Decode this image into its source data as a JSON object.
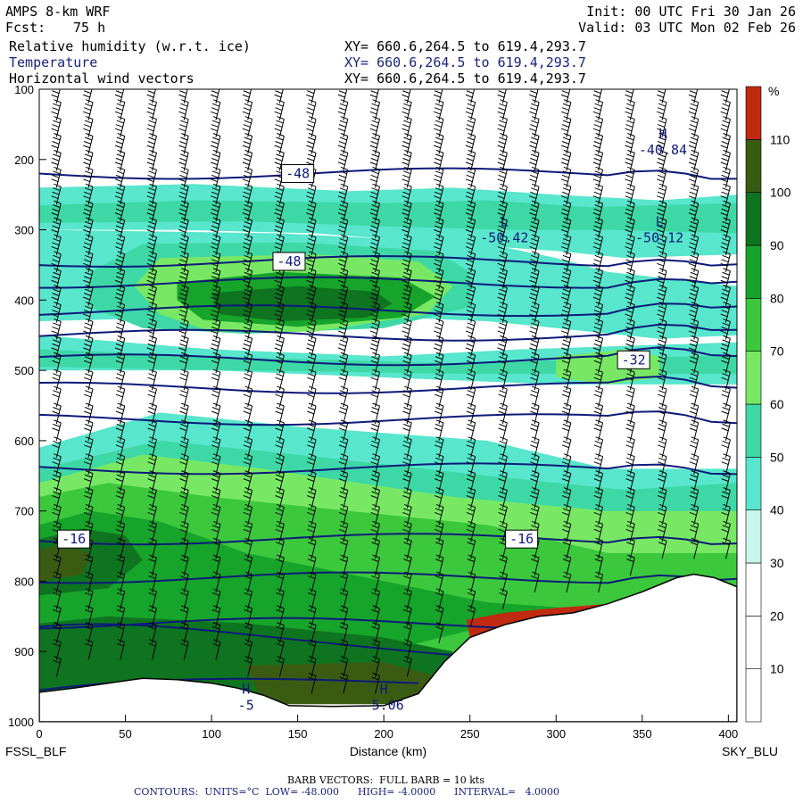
{
  "header": {
    "model": "AMPS 8-km WRF",
    "forecast_label": "Fcst:",
    "forecast_value": "75 h",
    "init": "Init: 00 UTC Fri 30 Jan 26",
    "valid": "Valid: 03 UTC Mon 02 Feb 26",
    "field1": "Relative humidity (w.r.t. ice)",
    "field2": "Temperature",
    "field3": "Horizontal wind vectors",
    "xy1": "XY= 660.6,264.5 to 619.4,293.7",
    "xy2": "XY= 660.6,264.5 to 619.4,293.7",
    "xy3": "XY= 660.6,264.5 to 619.4,293.7"
  },
  "footer": {
    "barb": "BARB VECTORS:  FULL BARB = 10 kts",
    "contours": "CONTOURS:  UNITS=°C  LOW= -48.000      HIGH= -4.0000      INTERVAL=   4.0000"
  },
  "colors": {
    "contour": "#0d1a7a",
    "barb": "#000000",
    "terrain": "#ffffff"
  },
  "chart_data": {
    "type": "heatmap",
    "title": "",
    "xlabel": "Distance (km)",
    "ylabel": "",
    "xlim": [
      0,
      405
    ],
    "ylim": [
      1000,
      100
    ],
    "x_ticks": [
      0,
      50,
      100,
      150,
      200,
      250,
      300,
      350,
      400
    ],
    "y_ticks": [
      100,
      200,
      300,
      400,
      500,
      600,
      700,
      800,
      900,
      1000
    ],
    "x_start_label": "FSSL_BLF",
    "x_end_label": "SKY_BLU",
    "colorbar": {
      "unit": "%",
      "levels": [
        10,
        20,
        30,
        40,
        50,
        60,
        70,
        80,
        90,
        100,
        110
      ],
      "colors": [
        "#ffffff",
        "#ffffff",
        "#ffffff",
        "#c8f6ec",
        "#58e6cc",
        "#3ed8a6",
        "#78e864",
        "#3cc83c",
        "#16a42a",
        "#0e7420",
        "#3a5c12",
        "#c02a10"
      ]
    },
    "terrain_surface_hpa": [
      [
        0,
        958
      ],
      [
        20,
        952
      ],
      [
        40,
        945
      ],
      [
        60,
        938
      ],
      [
        80,
        940
      ],
      [
        100,
        945
      ],
      [
        115,
        952
      ],
      [
        130,
        962
      ],
      [
        145,
        977
      ],
      [
        170,
        978
      ],
      [
        200,
        977
      ],
      [
        220,
        960
      ],
      [
        235,
        915
      ],
      [
        250,
        880
      ],
      [
        270,
        862
      ],
      [
        290,
        850
      ],
      [
        310,
        845
      ],
      [
        330,
        832
      ],
      [
        350,
        815
      ],
      [
        370,
        795
      ],
      [
        380,
        790
      ],
      [
        392,
        795
      ],
      [
        405,
        808
      ]
    ],
    "rh_regions": [
      {
        "level": 40,
        "x": [
          0,
          405
        ],
        "p": [
          250,
          330
        ],
        "desc": "upper moist band"
      },
      {
        "level": 60,
        "x": [
          20,
          240
        ],
        "p": [
          320,
          450
        ],
        "desc": "mid-level green area"
      },
      {
        "level": 80,
        "x": [
          80,
          210
        ],
        "p": [
          380,
          440
        ],
        "desc": "mid-level maximum"
      },
      {
        "level": 70,
        "x": [
          0,
          300
        ],
        "p": [
          640,
          960
        ],
        "desc": "lower-level moist layer"
      },
      {
        "level": 110,
        "x": [
          248,
          340
        ],
        "p": [
          840,
          880
        ],
        "desc": "near-surface maximum"
      }
    ],
    "temperature_contours": [
      {
        "value": -48,
        "label": "-48",
        "pressure_hpa": 220
      },
      {
        "value": -48,
        "label": "-48",
        "pressure_hpa": 345
      },
      {
        "value": -44,
        "label": "",
        "pressure_hpa": 375
      },
      {
        "value": -40,
        "label": "",
        "pressure_hpa": 415
      },
      {
        "value": -36,
        "label": "",
        "pressure_hpa": 450
      },
      {
        "value": -32,
        "label": "-32",
        "pressure_hpa": 485
      },
      {
        "value": -28,
        "label": "",
        "pressure_hpa": 525
      },
      {
        "value": -24,
        "label": "",
        "pressure_hpa": 570
      },
      {
        "value": -20,
        "label": "",
        "pressure_hpa": 640
      },
      {
        "value": -16,
        "label": "-16",
        "pressure_hpa": 740
      },
      {
        "value": -12,
        "label": "",
        "pressure_hpa": 795
      },
      {
        "value": -8,
        "label": "",
        "pressure_hpa": 860
      }
    ],
    "extrema": [
      {
        "type": "H",
        "value": "-40.84",
        "x_km": 362,
        "p_hpa": 180
      },
      {
        "type": "L",
        "value": "-50.42",
        "x_km": 270,
        "p_hpa": 305
      },
      {
        "type": "L",
        "value": "-50.12",
        "x_km": 360,
        "p_hpa": 305
      },
      {
        "type": "H",
        "value": "-5.06",
        "x_km": 200,
        "p_hpa": 970
      },
      {
        "type": "H",
        "value": "-5",
        "x_km": 120,
        "p_hpa": 970
      }
    ]
  }
}
